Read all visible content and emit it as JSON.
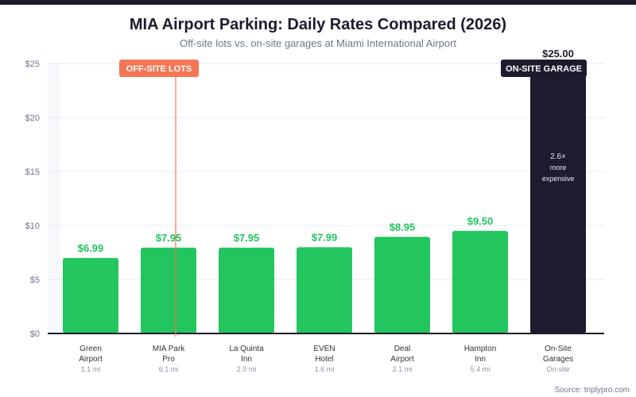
{
  "title": "MIA Airport Parking: Daily Rates Compared (2026)",
  "subtitle": "Off-site lots vs. on-site garages at Miami International Airport",
  "source": "Source: triplypro.com",
  "chart_data": {
    "type": "bar",
    "title": "MIA Airport Parking: Daily Rates Compared (2026)",
    "subtitle": "Off-site lots vs. on-site garages at Miami International Airport",
    "categories": [
      {
        "name": [
          "Green",
          "Airport"
        ],
        "distance": "1.1 mi"
      },
      {
        "name": [
          "MIA Park",
          "Pro"
        ],
        "distance": "6.1 mi"
      },
      {
        "name": [
          "La Quinta",
          "Inn"
        ],
        "distance": "2.0 mi"
      },
      {
        "name": [
          "EVEN",
          "Hotel"
        ],
        "distance": "1.6 mi"
      },
      {
        "name": [
          "Deal",
          "Airport"
        ],
        "distance": "2.1 mi"
      },
      {
        "name": [
          "Hampton",
          "Inn"
        ],
        "distance": "5.4 mi"
      },
      {
        "name": [
          "On-Site",
          "Garages"
        ],
        "distance": "On-site"
      }
    ],
    "values": [
      6.99,
      7.95,
      7.95,
      7.99,
      8.95,
      9.5,
      25.0
    ],
    "value_labels": [
      "$6.99",
      "$7.95",
      "$7.95",
      "$7.99",
      "$8.95",
      "$9.50",
      "$25.00"
    ],
    "ylim": [
      0,
      25
    ],
    "yticks": [
      "$0",
      "$5",
      "$10",
      "$15",
      "$20",
      "$25"
    ],
    "ytick_values": [
      0,
      5,
      10,
      15,
      20,
      25
    ],
    "grid": true,
    "colors": {
      "offsite": "#22c55e",
      "onsite": "#1c1c2e",
      "offsite_badge": "#f47656",
      "divider": "#f47656"
    },
    "annotations": {
      "offsite_badge": "OFF-SITE LOTS",
      "onsite_badge": "ON-SITE GARAGE",
      "onsite_note": [
        "2.6×",
        "more",
        "expensive"
      ]
    }
  }
}
